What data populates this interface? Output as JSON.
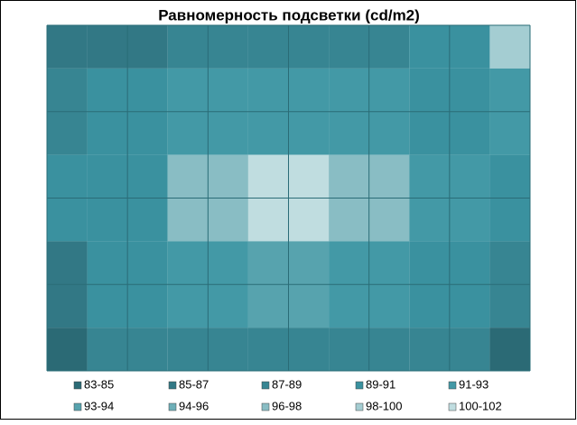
{
  "chart_data": {
    "type": "contour",
    "title": "Равномерность подсветки (cd/m2)",
    "z": [
      [
        86,
        86,
        87,
        87,
        87,
        90,
        98
      ],
      [
        88,
        89,
        91,
        92,
        91,
        89,
        92
      ],
      [
        89,
        90,
        96,
        101,
        96,
        91,
        90
      ],
      [
        86,
        89,
        91,
        93,
        91,
        90,
        88
      ],
      [
        84,
        87,
        88,
        88,
        88,
        87,
        84
      ]
    ],
    "levels": [
      83,
      85,
      87,
      89,
      91,
      93,
      94,
      96,
      98,
      100,
      102
    ],
    "legend": [
      {
        "label": "83-85",
        "color": "#2b6a75"
      },
      {
        "label": "85-87",
        "color": "#327885"
      },
      {
        "label": "87-89",
        "color": "#378592"
      },
      {
        "label": "89-91",
        "color": "#3a919f"
      },
      {
        "label": "91-93",
        "color": "#4399a6"
      },
      {
        "label": "93-94",
        "color": "#57a3ae"
      },
      {
        "label": "94-96",
        "color": "#6eafb8"
      },
      {
        "label": "96-98",
        "color": "#89bdc4"
      },
      {
        "label": "98-100",
        "color": "#a4cdd2"
      },
      {
        "label": "100-102",
        "color": "#c0dde0"
      }
    ]
  }
}
